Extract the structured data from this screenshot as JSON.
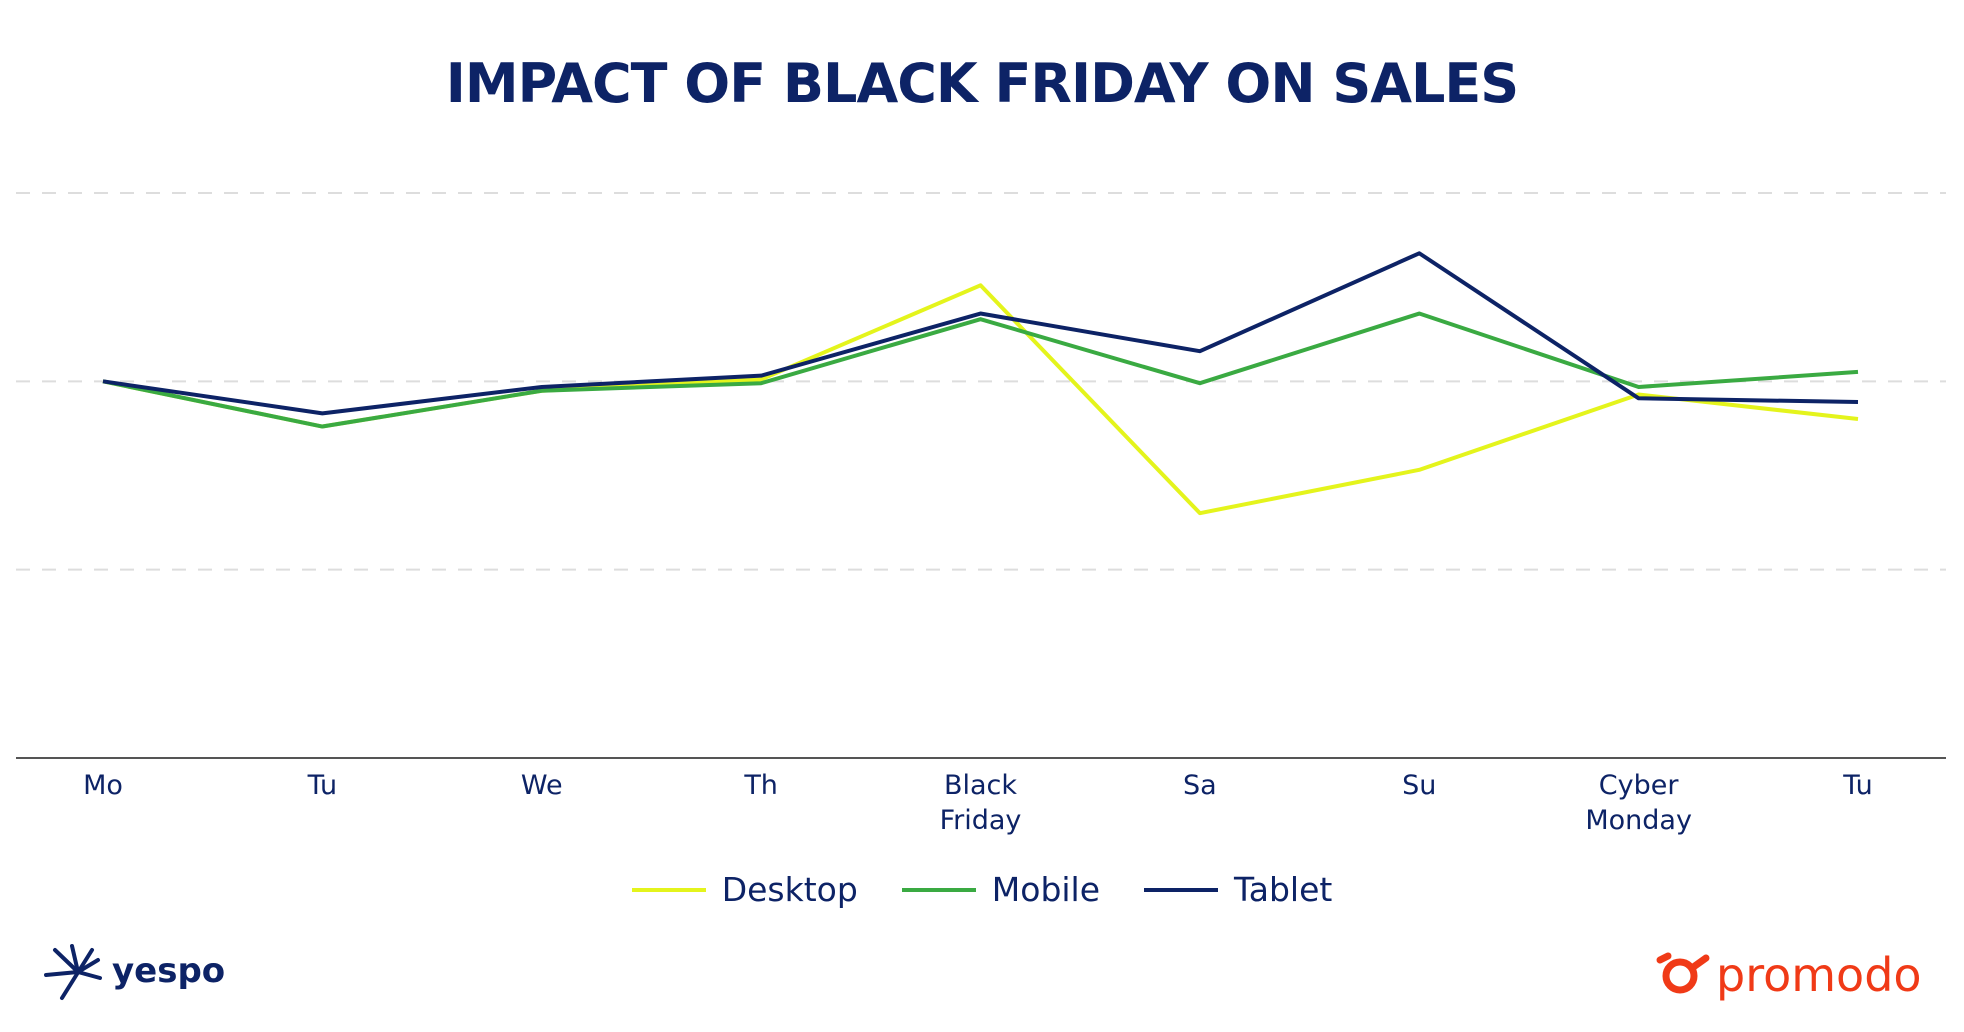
{
  "chart_data": {
    "type": "line",
    "title": "IMPACT OF BLACK FRIDAY ON SALES",
    "categories": [
      "Mo",
      "Tu",
      "We",
      "Th",
      "Black Friday",
      "Sa",
      "Su",
      "Cyber Monday",
      "Tu"
    ],
    "series": [
      {
        "name": "Desktop",
        "color": "#e4f41c",
        "values": [
          2.0,
          1.76,
          1.95,
          2.01,
          2.51,
          1.3,
          1.53,
          1.93,
          1.8
        ]
      },
      {
        "name": "Mobile",
        "color": "#3aaa42",
        "values": [
          2.0,
          1.76,
          1.95,
          1.99,
          2.33,
          1.99,
          2.36,
          1.97,
          2.05
        ]
      },
      {
        "name": "Tablet",
        "color": "#0d2366",
        "values": [
          2.0,
          1.83,
          1.97,
          2.03,
          2.36,
          2.16,
          2.68,
          1.91,
          1.89
        ]
      }
    ],
    "ylim": [
      0,
      3
    ],
    "yticks": [
      1,
      2,
      3
    ],
    "grid": true,
    "legend": "bottom"
  },
  "logos": {
    "left": "yespo",
    "right": "promodo"
  }
}
